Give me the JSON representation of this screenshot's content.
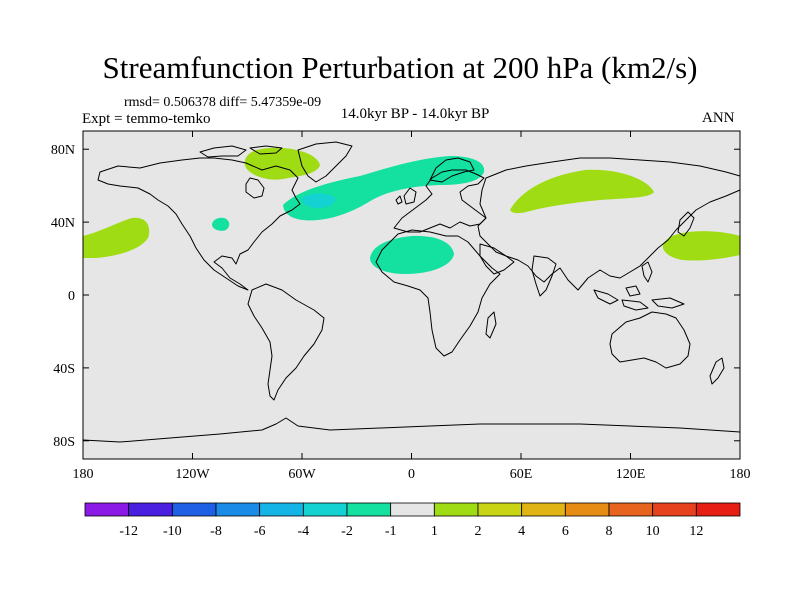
{
  "title": "Streamfunction Perturbation at 200 hPa (km2/s)",
  "stats": "rmsd= 0.506378 diff= 5.47359e-09",
  "expt": "Expt = temmo-temko",
  "period": "14.0kyr BP - 14.0kyr BP",
  "season": "ANN",
  "map": {
    "projection": "cylindrical-equidistant",
    "lon_range": [
      -180,
      180
    ],
    "lat_range": [
      -90,
      90
    ],
    "lon_ticks": [
      {
        "value": -180,
        "label": "180"
      },
      {
        "value": -120,
        "label": "120W"
      },
      {
        "value": -60,
        "label": "60W"
      },
      {
        "value": 0,
        "label": "0"
      },
      {
        "value": 60,
        "label": "60E"
      },
      {
        "value": 120,
        "label": "120E"
      },
      {
        "value": 180,
        "label": "180"
      }
    ],
    "lat_ticks": [
      {
        "value": 80,
        "label": "80N"
      },
      {
        "value": 40,
        "label": "40N"
      },
      {
        "value": 0,
        "label": "0"
      },
      {
        "value": -40,
        "label": "40S"
      },
      {
        "value": -80,
        "label": "80S"
      }
    ],
    "background_color": "#e6e6e6",
    "coastline_color": "#000000"
  },
  "colorbar": {
    "labels": [
      "-12",
      "-10",
      "-8",
      "-6",
      "-4",
      "-2",
      "-1",
      "1",
      "2",
      "4",
      "6",
      "8",
      "10",
      "12"
    ],
    "colors": [
      "#8b1ae6",
      "#4a1fe0",
      "#1f5fe6",
      "#1a8be6",
      "#14b5e6",
      "#14d2d2",
      "#14e0a0",
      "#e6e6e6",
      "#a0dc14",
      "#c8d414",
      "#e0b414",
      "#e68c14",
      "#e6641e",
      "#e6421e",
      "#e61e14"
    ]
  },
  "anomalies": [
    {
      "name": "north-atlantic-negative",
      "range": "-2 to -1",
      "color": "#14e0a0",
      "lon": -35,
      "lat": 55
    },
    {
      "name": "labrador-core",
      "range": "-4 to -2",
      "color": "#14d2d2",
      "lon": -45,
      "lat": 47
    },
    {
      "name": "sahara-negative",
      "range": "-2 to -1",
      "color": "#14e0a0",
      "lon": 0,
      "lat": 23
    },
    {
      "name": "gulf-negative",
      "range": "-2 to -1",
      "color": "#14e0a0",
      "lon": -105,
      "lat": 38
    },
    {
      "name": "canada-positive",
      "range": "1 to 2",
      "color": "#a0dc14",
      "lon": -75,
      "lat": 75
    },
    {
      "name": "central-asia-positive",
      "range": "1 to 2",
      "color": "#a0dc14",
      "lon": 80,
      "lat": 52
    },
    {
      "name": "north-pacific-east-positive",
      "range": "1 to 2",
      "color": "#a0dc14",
      "lon": -165,
      "lat": 32
    },
    {
      "name": "north-pacific-west-positive",
      "range": "1 to 2",
      "color": "#a0dc14",
      "lon": 160,
      "lat": 30
    }
  ]
}
